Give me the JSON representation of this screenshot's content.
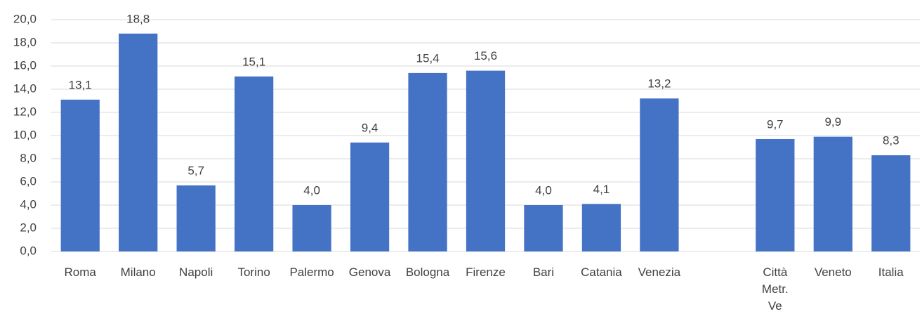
{
  "chart_data": {
    "type": "bar",
    "categories": [
      "Roma",
      "Milano",
      "Napoli",
      "Torino",
      "Palermo",
      "Genova",
      "Bologna",
      "Firenze",
      "Bari",
      "Catania",
      "Venezia",
      null,
      "Città Metr. Ve",
      "Veneto",
      "Italia"
    ],
    "values": [
      13.1,
      18.8,
      5.7,
      15.1,
      4.0,
      9.4,
      15.4,
      15.6,
      4.0,
      4.1,
      13.2,
      null,
      9.7,
      9.9,
      8.3
    ],
    "value_labels": [
      "13,1",
      "18,8",
      "5,7",
      "15,1",
      "4,0",
      "9,4",
      "15,4",
      "15,6",
      "4,0",
      "4,1",
      "13,2",
      null,
      "9,7",
      "9,9",
      "8,3"
    ],
    "color": "#4472c4",
    "ylim": [
      0,
      20
    ],
    "yticks": [
      {
        "value": 0,
        "label": "0,0"
      },
      {
        "value": 2,
        "label": "2,0"
      },
      {
        "value": 4,
        "label": "4,0"
      },
      {
        "value": 6,
        "label": "6,0"
      },
      {
        "value": 8,
        "label": "8,0"
      },
      {
        "value": 10,
        "label": "10,0"
      },
      {
        "value": 12,
        "label": "12,0"
      },
      {
        "value": 14,
        "label": "14,0"
      },
      {
        "value": 16,
        "label": "16,0"
      },
      {
        "value": 18,
        "label": "18,0"
      },
      {
        "value": 20,
        "label": "20,0"
      }
    ],
    "grid": true
  }
}
